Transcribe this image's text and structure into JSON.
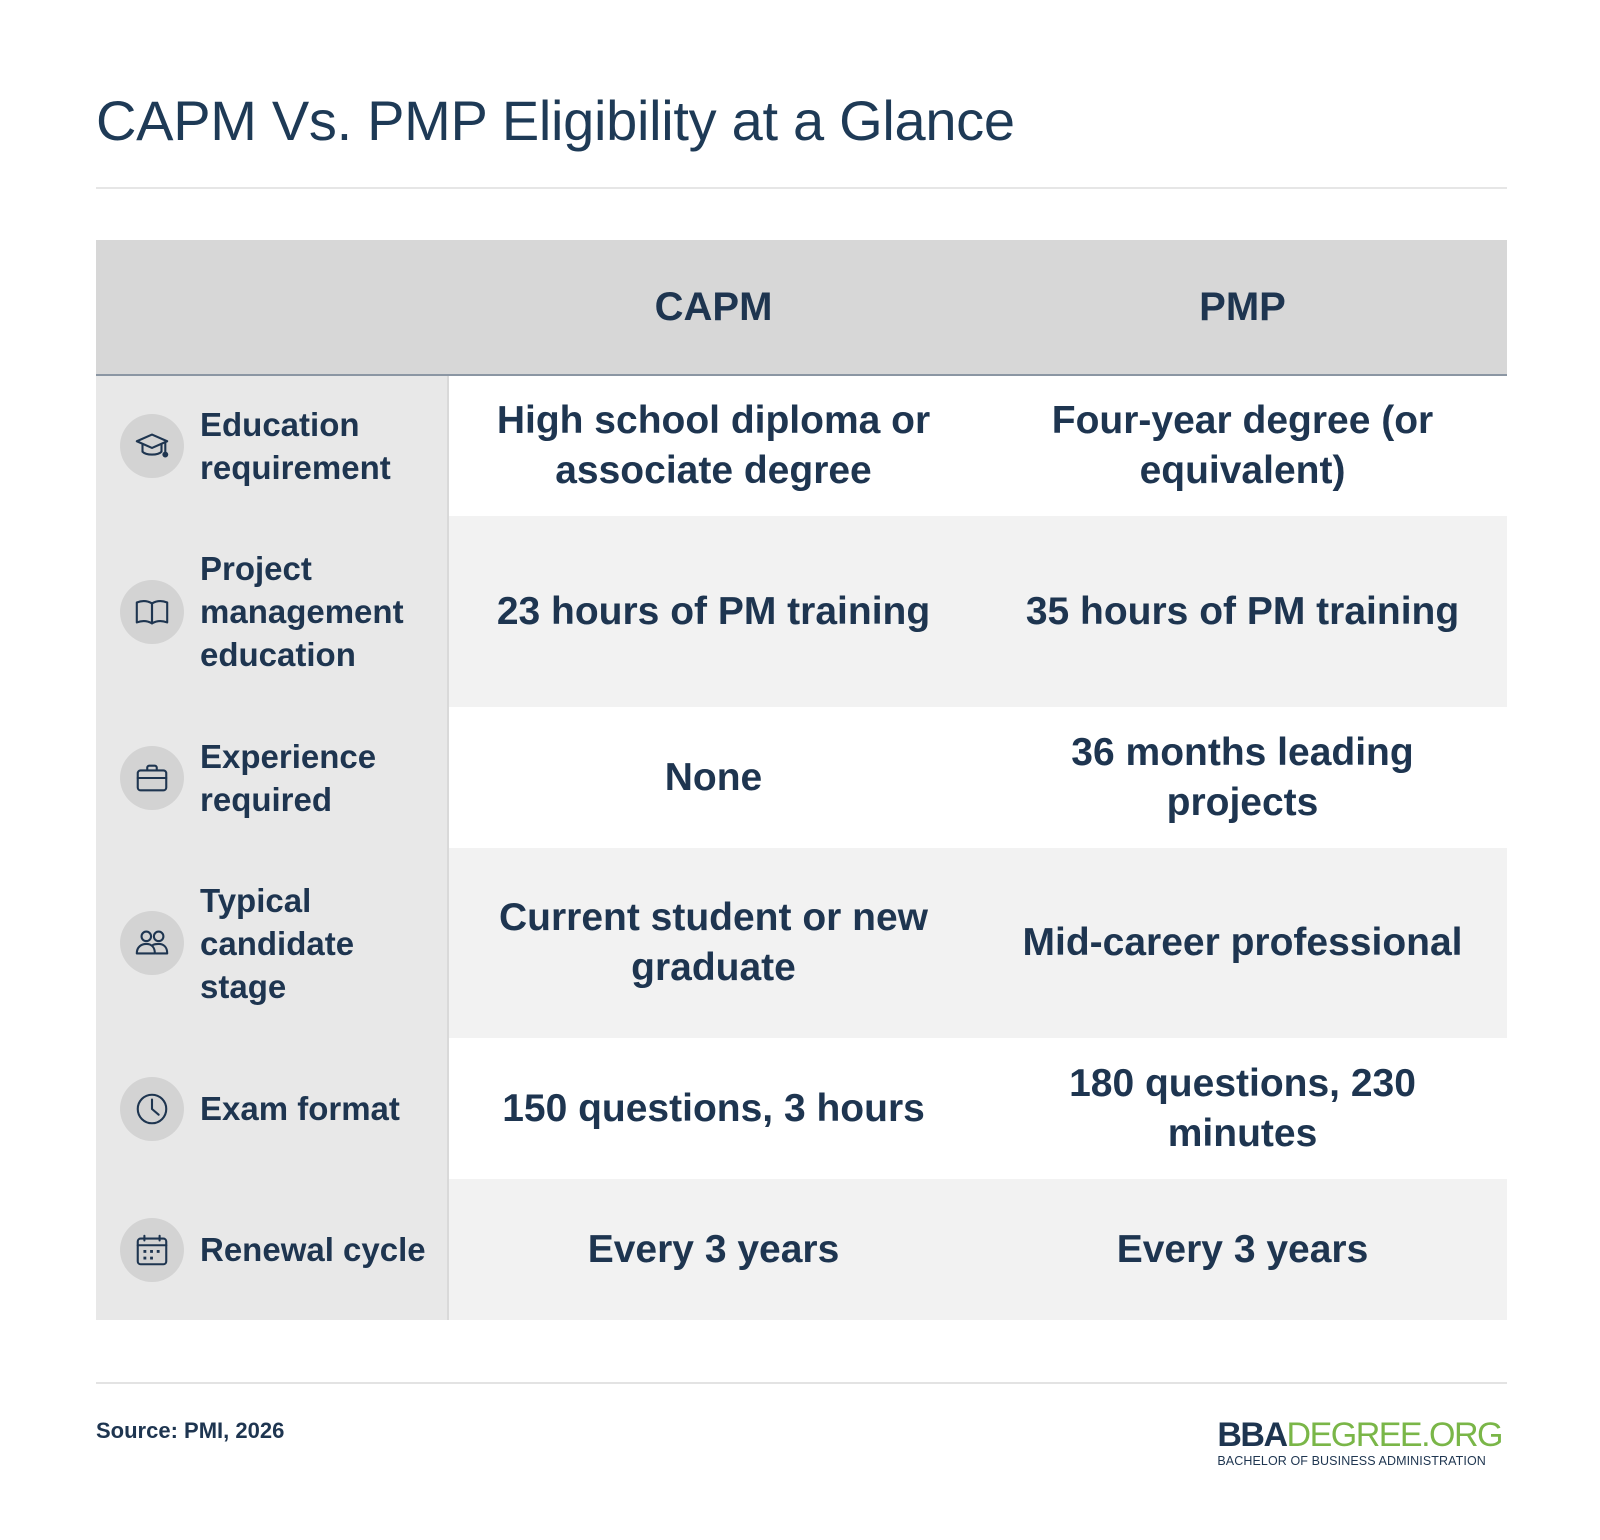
{
  "title": "CAPM Vs. PMP Eligibility at a Glance",
  "table": {
    "headers": [
      "",
      "CAPM",
      "PMP"
    ],
    "rows": [
      {
        "icon": "graduation-cap-icon",
        "label": "Education requirement",
        "capm": "High school diploma or associate degree",
        "pmp": "Four-year degree (or equivalent)"
      },
      {
        "icon": "open-book-icon",
        "label": "Project management education",
        "capm": "23 hours of PM training",
        "pmp": "35 hours of PM training"
      },
      {
        "icon": "briefcase-icon",
        "label": "Experience required",
        "capm": "None",
        "pmp": "36 months leading projects"
      },
      {
        "icon": "people-icon",
        "label": "Typical candidate stage",
        "capm": "Current student or new graduate",
        "pmp": "Mid-career professional"
      },
      {
        "icon": "clock-icon",
        "label": "Exam format",
        "capm": "150 questions, 3 hours",
        "pmp": "180 questions, 230 minutes"
      },
      {
        "icon": "calendar-icon",
        "label": "Renewal cycle",
        "capm": "Every 3 years",
        "pmp": "Every 3 years"
      }
    ]
  },
  "footer": {
    "source": "Source: PMI, 2026",
    "logo_bold": "BBA",
    "logo_rest": "DEGREE.ORG",
    "logo_tagline": "BACHELOR OF BUSINESS ADMINISTRATION"
  },
  "colors": {
    "text_navy": "#1e3550",
    "header_bg": "#d7d7d7",
    "label_bg": "#e8e8e8",
    "row_alt_bg": "#f2f2f2",
    "logo_green": "#7ab648"
  }
}
